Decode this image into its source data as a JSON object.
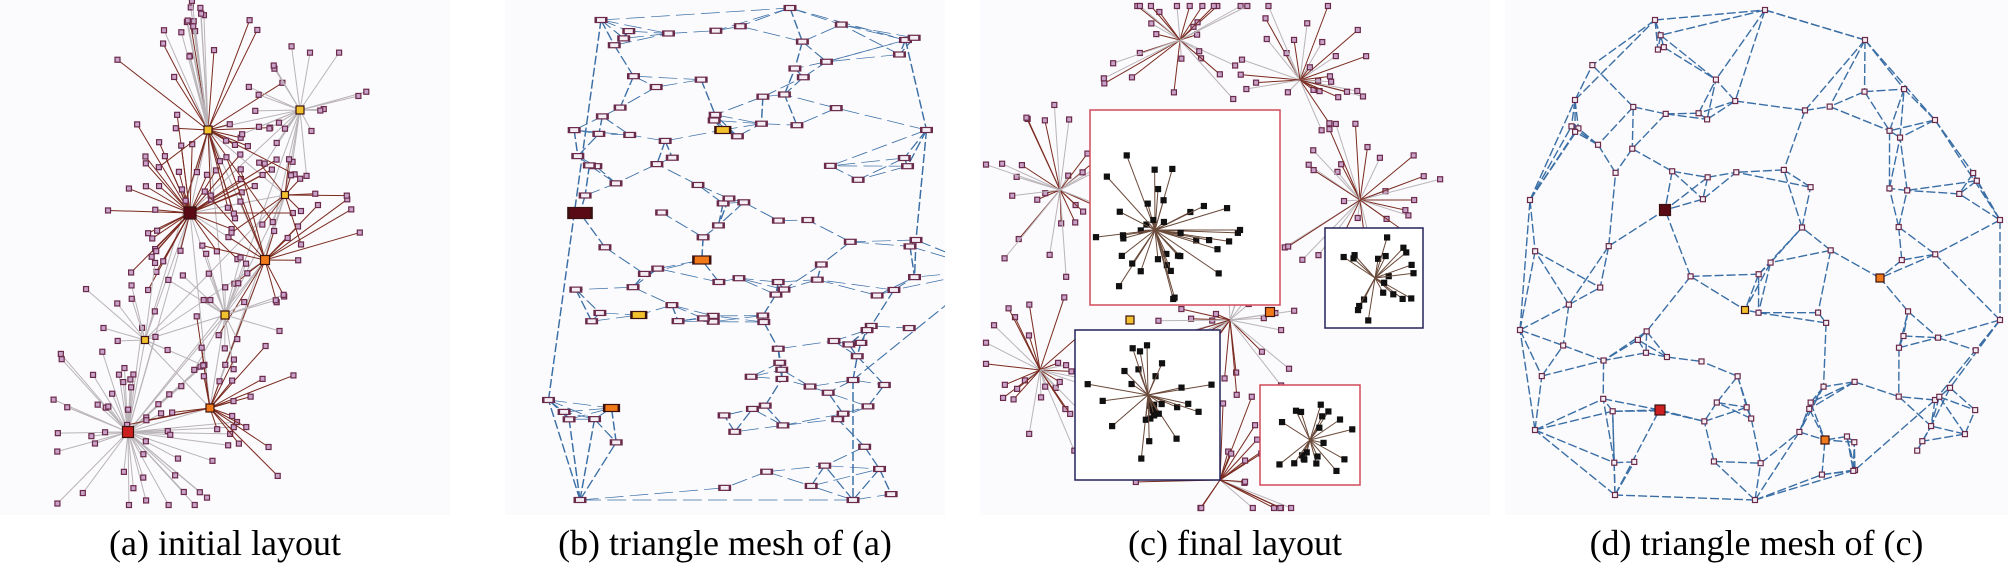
{
  "figure": {
    "panels": [
      {
        "id": "a",
        "caption": "(a) initial layout"
      },
      {
        "id": "b",
        "caption": "(b) triangle mesh of (a)"
      },
      {
        "id": "c",
        "caption": "(c) final layout"
      },
      {
        "id": "d",
        "caption": "(d) triangle mesh of (c)"
      }
    ]
  },
  "colors": {
    "edge_gray": "#b9b4b8",
    "edge_brown": "#7a2a1e",
    "mesh_blue": "#3a6fa5",
    "node_fill": "#c9a2c9",
    "node_stroke": "#6a2a4a",
    "hub_dark": "#5a0a14",
    "hub_red": "#cc1f1f",
    "hub_orange": "#f07a1a",
    "hub_yellow": "#f2c12e",
    "box_red": "#d24a5a",
    "box_navy": "#22225a",
    "black_node": "#111111"
  }
}
